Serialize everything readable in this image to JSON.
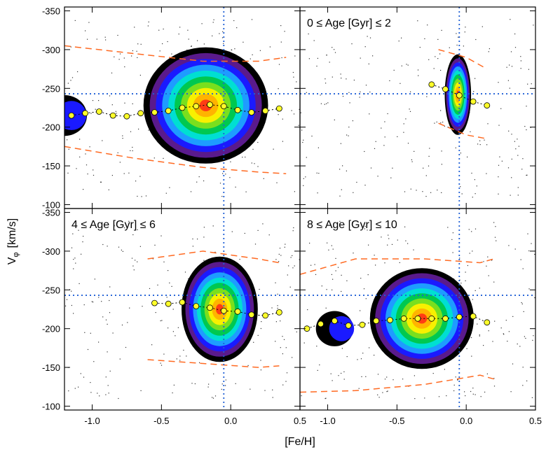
{
  "chart_data": {
    "type": "contour-scatter",
    "xlabel": "[Fe/H]",
    "ylabel": "V",
    "ylabel_subscript": "φ",
    "ylabel_unit": "[km/s]",
    "xlim": [
      -1.2,
      0.5
    ],
    "ylim": [
      -95,
      -355
    ],
    "x_ticks": [
      -1.0,
      -0.5,
      0.0,
      0.5
    ],
    "x_tick_labels": [
      "-1.0",
      "-0.5",
      "0.0",
      "0.5"
    ],
    "y_ticks": [
      -100,
      -150,
      -200,
      -250,
      -300,
      -350
    ],
    "y_tick_labels": [
      "-100",
      "-150",
      "-200",
      "-250",
      "-300",
      "-350"
    ],
    "reference_lines": {
      "feh": -0.05,
      "vphi": -243
    },
    "contour_colors": [
      "#000000",
      "#5a1a8c",
      "#1a1aff",
      "#1e9cff",
      "#00dfd2",
      "#00c850",
      "#7adf1e",
      "#f8f000",
      "#ffb400",
      "#ff3c14"
    ],
    "mean_marker_color": "#ffff2a",
    "dispersion_line_color": "#ff6a22",
    "reference_line_color": "#1f5fd6",
    "panels": [
      {
        "label": "",
        "contour": {
          "cx": -0.18,
          "cy": -228,
          "rx": 0.9,
          "ry": 75,
          "tail_x": -1.2,
          "tail_y": -215
        },
        "means": [
          {
            "x": -1.15,
            "y": -215
          },
          {
            "x": -1.05,
            "y": -218
          },
          {
            "x": -0.95,
            "y": -220
          },
          {
            "x": -0.85,
            "y": -215
          },
          {
            "x": -0.75,
            "y": -214
          },
          {
            "x": -0.65,
            "y": -218
          },
          {
            "x": -0.55,
            "y": -219
          },
          {
            "x": -0.45,
            "y": -221
          },
          {
            "x": -0.35,
            "y": -225
          },
          {
            "x": -0.25,
            "y": -227
          },
          {
            "x": -0.15,
            "y": -229
          },
          {
            "x": -0.05,
            "y": -227
          },
          {
            "x": 0.05,
            "y": -222
          },
          {
            "x": 0.15,
            "y": -219
          },
          {
            "x": 0.25,
            "y": -221
          },
          {
            "x": 0.35,
            "y": -224
          }
        ],
        "upper_dispersion": [
          [
            -1.2,
            -305
          ],
          [
            -0.7,
            -295
          ],
          [
            -0.2,
            -285
          ],
          [
            0.2,
            -285
          ],
          [
            0.4,
            -290
          ]
        ],
        "lower_dispersion": [
          [
            -1.2,
            -175
          ],
          [
            -0.7,
            -160
          ],
          [
            -0.2,
            -148
          ],
          [
            0.2,
            -142
          ],
          [
            0.4,
            -140
          ]
        ]
      },
      {
        "label": "0 ≤ Age [Gyr] ≤ 2",
        "contour": {
          "cx": -0.06,
          "cy": -242,
          "rx": 0.19,
          "ry": 52,
          "tail_x": null,
          "tail_y": null
        },
        "means": [
          {
            "x": -0.25,
            "y": -255
          },
          {
            "x": -0.15,
            "y": -249
          },
          {
            "x": -0.05,
            "y": -241
          },
          {
            "x": 0.05,
            "y": -233
          },
          {
            "x": 0.15,
            "y": -228
          }
        ],
        "upper_dispersion": [
          [
            -0.2,
            -300
          ],
          [
            0.0,
            -290
          ],
          [
            0.15,
            -275
          ]
        ],
        "lower_dispersion": [
          [
            -0.2,
            -205
          ],
          [
            0.0,
            -190
          ],
          [
            0.15,
            -185
          ]
        ]
      },
      {
        "label": "4 ≤ Age [Gyr] ≤ 6",
        "contour": {
          "cx": -0.08,
          "cy": -225,
          "rx": 0.55,
          "ry": 68,
          "tail_x": null,
          "tail_y": null
        },
        "means": [
          {
            "x": -0.55,
            "y": -233
          },
          {
            "x": -0.45,
            "y": -232
          },
          {
            "x": -0.35,
            "y": -234
          },
          {
            "x": -0.25,
            "y": -229
          },
          {
            "x": -0.15,
            "y": -227
          },
          {
            "x": -0.05,
            "y": -223
          },
          {
            "x": 0.05,
            "y": -222
          },
          {
            "x": 0.15,
            "y": -218
          },
          {
            "x": 0.25,
            "y": -217
          },
          {
            "x": 0.35,
            "y": -221
          }
        ],
        "upper_dispersion": [
          [
            -0.6,
            -290
          ],
          [
            -0.2,
            -300
          ],
          [
            0.2,
            -290
          ],
          [
            0.35,
            -285
          ]
        ],
        "lower_dispersion": [
          [
            -0.6,
            -160
          ],
          [
            -0.2,
            -155
          ],
          [
            0.2,
            -150
          ],
          [
            0.35,
            -152
          ]
        ]
      },
      {
        "label": "8 ≤ Age [Gyr] ≤ 10",
        "contour": {
          "cx": -0.32,
          "cy": -213,
          "rx": 0.75,
          "ry": 65,
          "tail_x": -0.95,
          "tail_y": -200
        },
        "means": [
          {
            "x": -1.15,
            "y": -200
          },
          {
            "x": -1.05,
            "y": -206
          },
          {
            "x": -0.95,
            "y": -210
          },
          {
            "x": -0.85,
            "y": -204
          },
          {
            "x": -0.75,
            "y": -205
          },
          {
            "x": -0.65,
            "y": -210
          },
          {
            "x": -0.55,
            "y": -211
          },
          {
            "x": -0.45,
            "y": -213
          },
          {
            "x": -0.35,
            "y": -213
          },
          {
            "x": -0.25,
            "y": -213
          },
          {
            "x": -0.15,
            "y": -213
          },
          {
            "x": -0.05,
            "y": -215
          },
          {
            "x": 0.05,
            "y": -216
          },
          {
            "x": 0.15,
            "y": -208
          }
        ],
        "upper_dispersion": [
          [
            -1.2,
            -270
          ],
          [
            -0.8,
            -290
          ],
          [
            -0.3,
            -290
          ],
          [
            0.1,
            -285
          ],
          [
            0.2,
            -290
          ]
        ],
        "lower_dispersion": [
          [
            -1.2,
            -118
          ],
          [
            -0.8,
            -120
          ],
          [
            -0.3,
            -128
          ],
          [
            0.1,
            -140
          ],
          [
            0.2,
            -135
          ]
        ]
      }
    ]
  }
}
